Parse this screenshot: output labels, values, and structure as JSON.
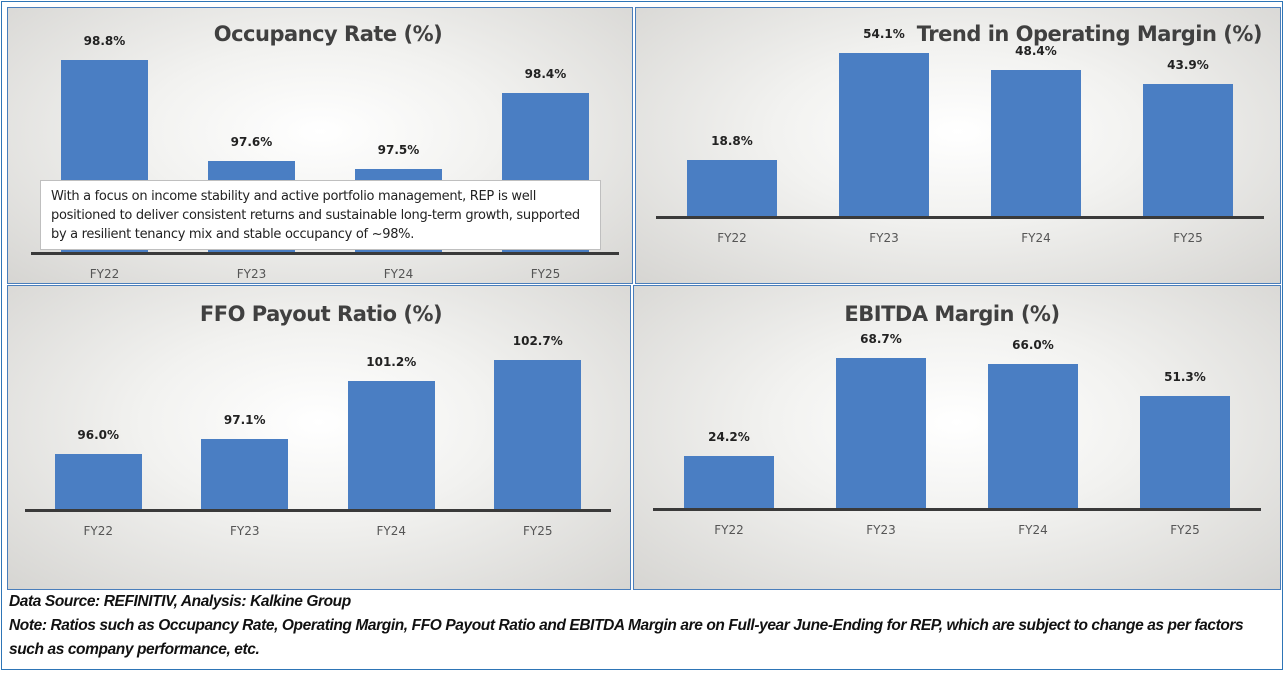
{
  "chart_data": [
    {
      "type": "bar",
      "title": "Occupancy Rate (%)",
      "categories": [
        "FY22",
        "FY23",
        "FY24",
        "FY25"
      ],
      "values": [
        98.8,
        97.6,
        97.5,
        98.4
      ],
      "labels": [
        "98.8%",
        "97.6%",
        "97.5%",
        "98.4%"
      ],
      "ylim": [
        96.5,
        99.0
      ],
      "grid": false,
      "color": "#4a7ec3"
    },
    {
      "type": "bar",
      "title": "Trend in Operating Margin (%)",
      "categories": [
        "FY22",
        "FY23",
        "FY24",
        "FY25"
      ],
      "values": [
        18.8,
        54.1,
        48.4,
        43.9
      ],
      "labels": [
        "18.8%",
        "54.1%",
        "48.4%",
        "43.9%"
      ],
      "ylim": [
        0,
        60
      ],
      "grid": false,
      "color": "#4a7ec3"
    },
    {
      "type": "bar",
      "title": "FFO Payout Ratio (%)",
      "categories": [
        "FY22",
        "FY23",
        "FY24",
        "FY25"
      ],
      "values": [
        96.0,
        97.1,
        101.2,
        102.7
      ],
      "labels": [
        "96.0%",
        "97.1%",
        "101.2%",
        "102.7%"
      ],
      "ylim": [
        92,
        104
      ],
      "grid": false,
      "color": "#4a7ec3"
    },
    {
      "type": "bar",
      "title": "EBITDA Margin (%)",
      "categories": [
        "FY22",
        "FY23",
        "FY24",
        "FY25"
      ],
      "values": [
        24.2,
        68.7,
        66.0,
        51.3
      ],
      "labels": [
        "24.2%",
        "68.7%",
        "66.0%",
        "51.3%"
      ],
      "ylim": [
        0,
        80
      ],
      "grid": false,
      "color": "#4a7ec3"
    }
  ],
  "annotation": "With a focus on income stability and active portfolio management, REP is well positioned to deliver consistent returns and sustainable long-term growth, supported by a resilient tenancy mix and stable occupancy of ~98%.",
  "footer": {
    "source": "Data Source: REFINITIV, Analysis: Kalkine Group",
    "note": "Note: Ratios such as Occupancy Rate, Operating Margin, FFO Payout Ratio and EBITDA Margin are on Full-year June-Ending for REP, which are subject to change as per factors such as company performance, etc."
  }
}
